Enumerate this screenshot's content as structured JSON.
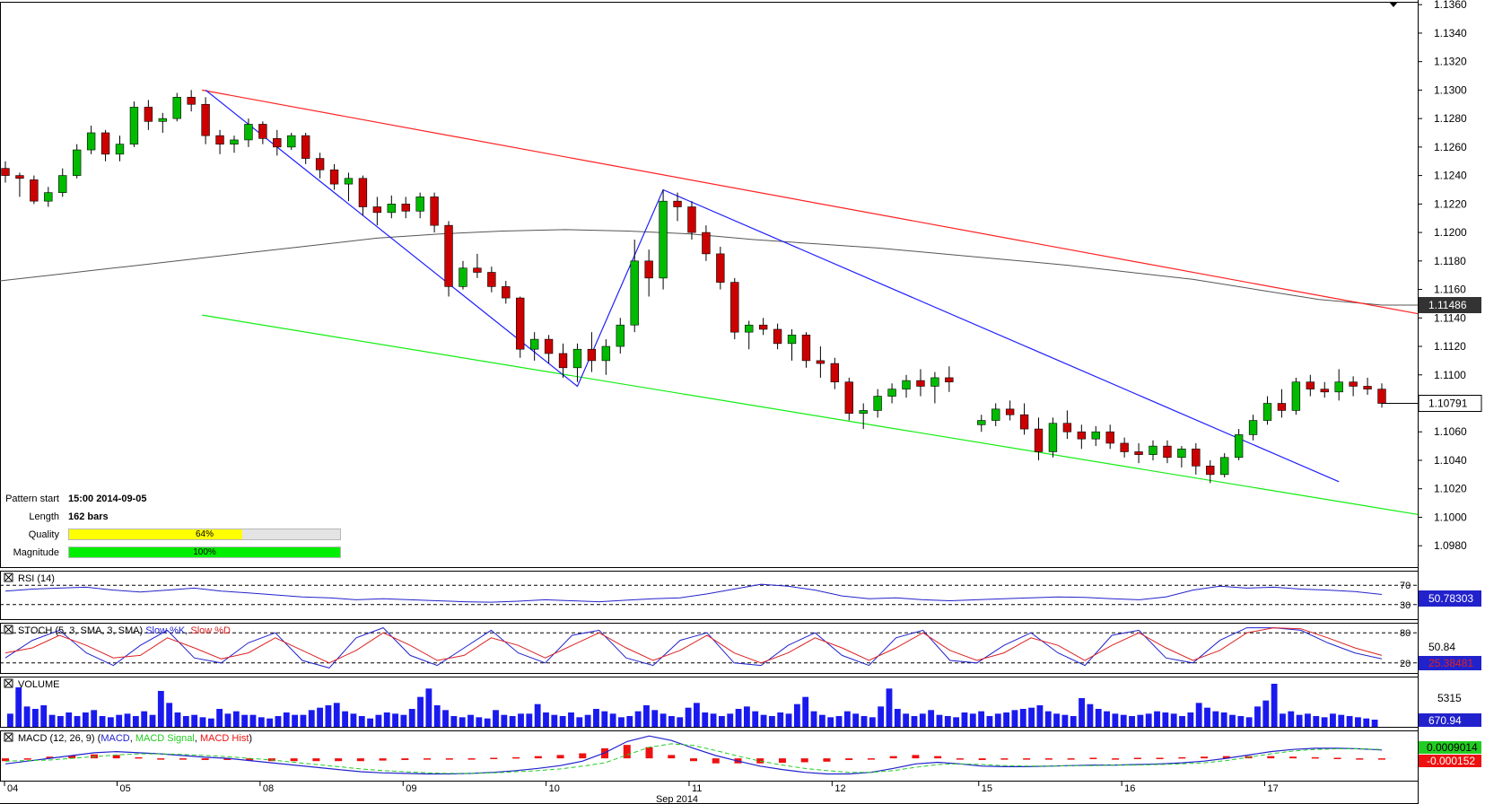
{
  "pattern_info": {
    "pattern_start_label": "Pattern start",
    "pattern_start_value": "15:00 2014-09-05",
    "length_label": "Length",
    "length_value": "162 bars",
    "quality_label": "Quality",
    "quality_value": "64%",
    "quality_fraction": 0.64,
    "magnitude_label": "Magnitude",
    "magnitude_value": "100%",
    "magnitude_fraction": 1.0
  },
  "colors": {
    "bull": "#00bb00",
    "bear": "#cc0000",
    "pattern_line": "#2020ff",
    "resistance": "#ff2020",
    "support": "#10ee10",
    "ma": "#555555",
    "quality": "#ffff00",
    "magnitude": "#00ee00"
  },
  "chart_data": [
    {
      "type": "candlestick",
      "name": "price",
      "y_range": [
        1.0965,
        1.1362
      ],
      "y_ticks": [
        "1.1360",
        "1.1340",
        "1.1320",
        "1.1300",
        "1.1280",
        "1.1260",
        "1.1240",
        "1.1220",
        "1.1200",
        "1.1180",
        "1.1160",
        "1.1140",
        "1.1120",
        "1.1100",
        "1.1080",
        "1.1060",
        "1.1040",
        "1.1020",
        "1.1000",
        "1.0980"
      ],
      "x_labels": [
        "04",
        "05",
        "08",
        "09",
        "10",
        "11",
        "12",
        "15",
        "16",
        "17"
      ],
      "x_sublabel": "Sep 2014",
      "current_price": "1.10791",
      "ma_last": "1.11486",
      "ma": [
        1.1166,
        1.1171,
        1.1176,
        1.1181,
        1.1186,
        1.1191,
        1.1196,
        1.1199,
        1.1201,
        1.1202,
        1.1201,
        1.1199,
        1.1195,
        1.1192,
        1.1189,
        1.1185,
        1.1181,
        1.1177,
        1.1172,
        1.1167,
        1.116,
        1.1153,
        1.1149
      ],
      "resistance": [
        [
          1.13,
          1.1143
        ]
      ],
      "support": [
        [
          1.1142,
          1.1002
        ]
      ],
      "pattern": [
        1.13,
        1.1092,
        1.123,
        1.1025
      ],
      "ohlc": [
        [
          1.1245,
          1.125,
          1.1235,
          1.124
        ],
        [
          1.124,
          1.1242,
          1.1225,
          1.1238
        ],
        [
          1.1237,
          1.124,
          1.122,
          1.1222
        ],
        [
          1.1222,
          1.1232,
          1.1218,
          1.1228
        ],
        [
          1.1228,
          1.1245,
          1.1225,
          1.124
        ],
        [
          1.124,
          1.1262,
          1.1238,
          1.1258
        ],
        [
          1.1258,
          1.1275,
          1.1255,
          1.127
        ],
        [
          1.127,
          1.1272,
          1.125,
          1.1255
        ],
        [
          1.1255,
          1.1268,
          1.125,
          1.1262
        ],
        [
          1.1262,
          1.1292,
          1.126,
          1.1288
        ],
        [
          1.1288,
          1.1293,
          1.1272,
          1.1278
        ],
        [
          1.1278,
          1.1284,
          1.127,
          1.128
        ],
        [
          1.128,
          1.1298,
          1.1278,
          1.1295
        ],
        [
          1.1295,
          1.13,
          1.1285,
          1.129
        ],
        [
          1.129,
          1.1295,
          1.1262,
          1.1268
        ],
        [
          1.1268,
          1.1272,
          1.1255,
          1.1262
        ],
        [
          1.1262,
          1.1268,
          1.1256,
          1.1265
        ],
        [
          1.1265,
          1.128,
          1.126,
          1.1276
        ],
        [
          1.1276,
          1.1278,
          1.1262,
          1.1266
        ],
        [
          1.1266,
          1.1272,
          1.1254,
          1.126
        ],
        [
          1.126,
          1.127,
          1.1258,
          1.1268
        ],
        [
          1.1268,
          1.127,
          1.1248,
          1.1252
        ],
        [
          1.1252,
          1.1256,
          1.1238,
          1.1244
        ],
        [
          1.1244,
          1.1248,
          1.123,
          1.1234
        ],
        [
          1.1234,
          1.1242,
          1.1222,
          1.1238
        ],
        [
          1.1238,
          1.124,
          1.1212,
          1.1218
        ],
        [
          1.1218,
          1.1225,
          1.1205,
          1.1214
        ],
        [
          1.1214,
          1.1226,
          1.121,
          1.122
        ],
        [
          1.122,
          1.1225,
          1.121,
          1.1215
        ],
        [
          1.1215,
          1.1228,
          1.121,
          1.1225
        ],
        [
          1.1225,
          1.1228,
          1.12,
          1.1205
        ],
        [
          1.1205,
          1.1208,
          1.1155,
          1.1162
        ],
        [
          1.1162,
          1.118,
          1.116,
          1.1175
        ],
        [
          1.1175,
          1.1185,
          1.1168,
          1.1172
        ],
        [
          1.1172,
          1.1176,
          1.1158,
          1.1162
        ],
        [
          1.1162,
          1.1166,
          1.115,
          1.1154
        ],
        [
          1.1154,
          1.1155,
          1.1112,
          1.1118
        ],
        [
          1.1118,
          1.113,
          1.111,
          1.1125
        ],
        [
          1.1125,
          1.1128,
          1.1108,
          1.1115
        ],
        [
          1.1115,
          1.1122,
          1.1098,
          1.1105
        ],
        [
          1.1105,
          1.1122,
          1.1095,
          1.1118
        ],
        [
          1.1118,
          1.113,
          1.1102,
          1.111
        ],
        [
          1.111,
          1.1125,
          1.11,
          1.112
        ],
        [
          1.112,
          1.114,
          1.1115,
          1.1135
        ],
        [
          1.1135,
          1.1195,
          1.113,
          1.118
        ],
        [
          1.118,
          1.1188,
          1.1155,
          1.1168
        ],
        [
          1.1168,
          1.123,
          1.116,
          1.1222
        ],
        [
          1.1222,
          1.1228,
          1.1208,
          1.1218
        ],
        [
          1.1218,
          1.1222,
          1.1195,
          1.12
        ],
        [
          1.12,
          1.1205,
          1.118,
          1.1185
        ],
        [
          1.1185,
          1.119,
          1.116,
          1.1165
        ],
        [
          1.1165,
          1.1168,
          1.1125,
          1.113
        ],
        [
          1.113,
          1.1138,
          1.1118,
          1.1135
        ],
        [
          1.1135,
          1.114,
          1.1128,
          1.1132
        ],
        [
          1.1132,
          1.1136,
          1.1118,
          1.1122
        ],
        [
          1.1122,
          1.1132,
          1.111,
          1.1128
        ],
        [
          1.1128,
          1.113,
          1.1105,
          1.111
        ],
        [
          1.111,
          1.112,
          1.1098,
          1.1108
        ],
        [
          1.1108,
          1.1112,
          1.109,
          1.1095
        ],
        [
          1.1095,
          1.1098,
          1.1068,
          1.1073
        ],
        [
          1.1073,
          1.108,
          1.1062,
          1.1075
        ],
        [
          1.1075,
          1.109,
          1.107,
          1.1085
        ],
        [
          1.1085,
          1.1094,
          1.108,
          1.109
        ],
        [
          1.109,
          1.11,
          1.1084,
          1.1096
        ],
        [
          1.1096,
          1.1104,
          1.1085,
          1.1092
        ],
        [
          1.1092,
          1.1102,
          1.108,
          1.1098
        ],
        [
          1.1098,
          1.1106,
          1.1088,
          1.1095
        ],
        [
          1.1065,
          1.1072,
          1.106,
          1.1068
        ],
        [
          1.1068,
          1.108,
          1.1064,
          1.1076
        ],
        [
          1.1076,
          1.1082,
          1.1068,
          1.1072
        ],
        [
          1.1072,
          1.108,
          1.1058,
          1.1062
        ],
        [
          1.1062,
          1.107,
          1.104,
          1.1046
        ],
        [
          1.1046,
          1.107,
          1.1042,
          1.1066
        ],
        [
          1.1066,
          1.1075,
          1.1055,
          1.106
        ],
        [
          1.106,
          1.1065,
          1.1048,
          1.1055
        ],
        [
          1.1055,
          1.1064,
          1.105,
          1.106
        ],
        [
          1.106,
          1.1065,
          1.1048,
          1.1052
        ],
        [
          1.1052,
          1.1056,
          1.1042,
          1.1046
        ],
        [
          1.1046,
          1.1052,
          1.1038,
          1.1044
        ],
        [
          1.1044,
          1.1054,
          1.104,
          1.105
        ],
        [
          1.105,
          1.1054,
          1.1038,
          1.1042
        ],
        [
          1.1042,
          1.105,
          1.1035,
          1.1048
        ],
        [
          1.1048,
          1.1052,
          1.103,
          1.1036
        ],
        [
          1.1036,
          1.104,
          1.1024,
          1.103
        ],
        [
          1.103,
          1.1045,
          1.1028,
          1.1042
        ],
        [
          1.1042,
          1.1062,
          1.104,
          1.1058
        ],
        [
          1.1058,
          1.1072,
          1.1054,
          1.1068
        ],
        [
          1.1068,
          1.1085,
          1.1065,
          1.108
        ],
        [
          1.108,
          1.109,
          1.107,
          1.1075
        ],
        [
          1.1075,
          1.1098,
          1.1072,
          1.1095
        ],
        [
          1.1095,
          1.11,
          1.1085,
          1.109
        ],
        [
          1.109,
          1.1095,
          1.1084,
          1.1088
        ],
        [
          1.1088,
          1.1104,
          1.1082,
          1.1095
        ],
        [
          1.1095,
          1.1099,
          1.1085,
          1.1092
        ],
        [
          1.1092,
          1.1098,
          1.1086,
          1.109
        ],
        [
          1.109,
          1.1094,
          1.1077,
          1.108
        ]
      ]
    },
    {
      "type": "line",
      "name": "RSI (14)",
      "levels": [
        "70",
        "30"
      ],
      "y_range": [
        0,
        100
      ],
      "value_label": "50.78303",
      "values": [
        58,
        62,
        64,
        66,
        60,
        56,
        60,
        64,
        58,
        54,
        50,
        46,
        44,
        40,
        42,
        40,
        38,
        36,
        35,
        37,
        40,
        38,
        36,
        39,
        42,
        44,
        52,
        62,
        72,
        68,
        60,
        48,
        42,
        44,
        40,
        38,
        40,
        42,
        44,
        46,
        45,
        42,
        40,
        46,
        60,
        68,
        64,
        66,
        62,
        60,
        57,
        51
      ]
    },
    {
      "type": "line",
      "name": "STOCH (5, 3, SMA, 3, SMA)",
      "series_names": [
        "Slow %K",
        "Slow %D"
      ],
      "levels": [
        "80",
        "20"
      ],
      "y_range": [
        0,
        100
      ],
      "value_labels": [
        "50.84",
        "25.38481"
      ],
      "k": [
        30,
        65,
        85,
        40,
        15,
        55,
        85,
        30,
        20,
        60,
        80,
        25,
        10,
        70,
        90,
        35,
        15,
        50,
        85,
        40,
        20,
        75,
        85,
        30,
        15,
        65,
        80,
        20,
        15,
        55,
        80,
        35,
        15,
        70,
        85,
        25,
        20,
        55,
        80,
        40,
        15,
        75,
        85,
        30,
        20,
        65,
        90,
        90,
        85,
        60,
        40,
        28
      ],
      "d": [
        40,
        50,
        75,
        55,
        30,
        35,
        70,
        50,
        28,
        40,
        70,
        45,
        20,
        45,
        80,
        55,
        25,
        35,
        70,
        55,
        30,
        55,
        80,
        50,
        25,
        45,
        75,
        40,
        20,
        40,
        70,
        50,
        25,
        50,
        80,
        45,
        25,
        40,
        70,
        55,
        25,
        55,
        80,
        50,
        25,
        45,
        80,
        90,
        88,
        70,
        50,
        35
      ]
    },
    {
      "type": "bar",
      "name": "VOLUME",
      "max_label": "5315",
      "value_label": "670.94",
      "values": [
        1100,
        3300,
        1700,
        1500,
        1800,
        1000,
        900,
        1200,
        900,
        1200,
        1400,
        900,
        800,
        1000,
        1100,
        900,
        1300,
        1000,
        3000,
        2000,
        1200,
        900,
        1000,
        800,
        700,
        1500,
        1100,
        1300,
        1000,
        1000,
        800,
        700,
        900,
        1200,
        1000,
        1000,
        1400,
        1600,
        1800,
        2000,
        1300,
        1100,
        900,
        700,
        1000,
        1200,
        1100,
        1000,
        1500,
        2500,
        3200,
        1800,
        1400,
        900,
        800,
        1000,
        800,
        700,
        1400,
        1000,
        900,
        1100,
        1100,
        1900,
        1200,
        1000,
        900,
        1200,
        800,
        1000,
        1500,
        1300,
        1100,
        800,
        900,
        1300,
        1800,
        1400,
        1100,
        900,
        800,
        1600,
        2000,
        1200,
        1100,
        900,
        1100,
        1500,
        1700,
        1300,
        1000,
        900,
        1200,
        1100,
        1900,
        2500,
        1300,
        1000,
        800,
        900,
        1300,
        1100,
        900,
        800,
        1700,
        3200,
        1500,
        1100,
        900,
        1100,
        1400,
        1000,
        900,
        800,
        1200,
        1100,
        1300,
        900,
        1100,
        1200,
        1400,
        1500,
        1600,
        1800,
        1300,
        1100,
        1000,
        900,
        2400,
        1900,
        1500,
        1300,
        1100,
        1000,
        900,
        1000,
        1100,
        1300,
        1200,
        1100,
        900,
        1200,
        2000,
        1600,
        1300,
        1200,
        1000,
        900,
        800,
        1700,
        2200,
        3600,
        1100,
        1300,
        1000,
        1100,
        900,
        800,
        1100,
        1000,
        900,
        800,
        700,
        600
      ]
    },
    {
      "type": "line",
      "name": "MACD (12, 26, 9)",
      "series_names": [
        "MACD",
        "MACD Signal",
        "MACD Hist"
      ],
      "value_labels": [
        "0.0009014",
        "-0.000152"
      ],
      "macd": [
        -1,
        -0.5,
        0,
        0.5,
        1,
        1.2,
        1,
        0.8,
        0.5,
        0.2,
        0,
        -0.4,
        -0.8,
        -1.2,
        -1.6,
        -2,
        -2.4,
        -2.6,
        -2.7,
        -2.8,
        -2.8,
        -2.7,
        -2.5,
        -2.2,
        -1.8,
        -1.3,
        -0.5,
        1,
        3,
        4,
        3.2,
        1.8,
        0.5,
        -0.5,
        -1.4,
        -2,
        -2.5,
        -2.8,
        -2.8,
        -2.5,
        -1.8,
        -1,
        -0.7,
        -1,
        -1.4,
        -1.5,
        -1.5,
        -1.4,
        -1.3,
        -1.2,
        -1.2,
        -1.1,
        -1,
        -0.8,
        -0.5,
        0,
        0.6,
        1.2,
        1.6,
        1.8,
        1.8,
        1.7,
        1.5
      ],
      "signal": [
        -0.5,
        -0.4,
        -0.3,
        0,
        0.3,
        0.6,
        0.8,
        0.8,
        0.7,
        0.5,
        0.3,
        0,
        -0.3,
        -0.7,
        -1.1,
        -1.5,
        -1.9,
        -2.2,
        -2.4,
        -2.6,
        -2.7,
        -2.7,
        -2.6,
        -2.4,
        -2.2,
        -1.9,
        -1.4,
        -0.8,
        0.6,
        2,
        2.6,
        2.3,
        1.4,
        0.4,
        -0.5,
        -1.2,
        -1.8,
        -2.2,
        -2.5,
        -2.5,
        -2.2,
        -1.6,
        -1.1,
        -1,
        -1.1,
        -1.3,
        -1.4,
        -1.4,
        -1.3,
        -1.3,
        -1.2,
        -1.2,
        -1.1,
        -1,
        -0.8,
        -0.4,
        0.2,
        0.8,
        1.3,
        1.6,
        1.7,
        1.7,
        1.6
      ]
    }
  ]
}
